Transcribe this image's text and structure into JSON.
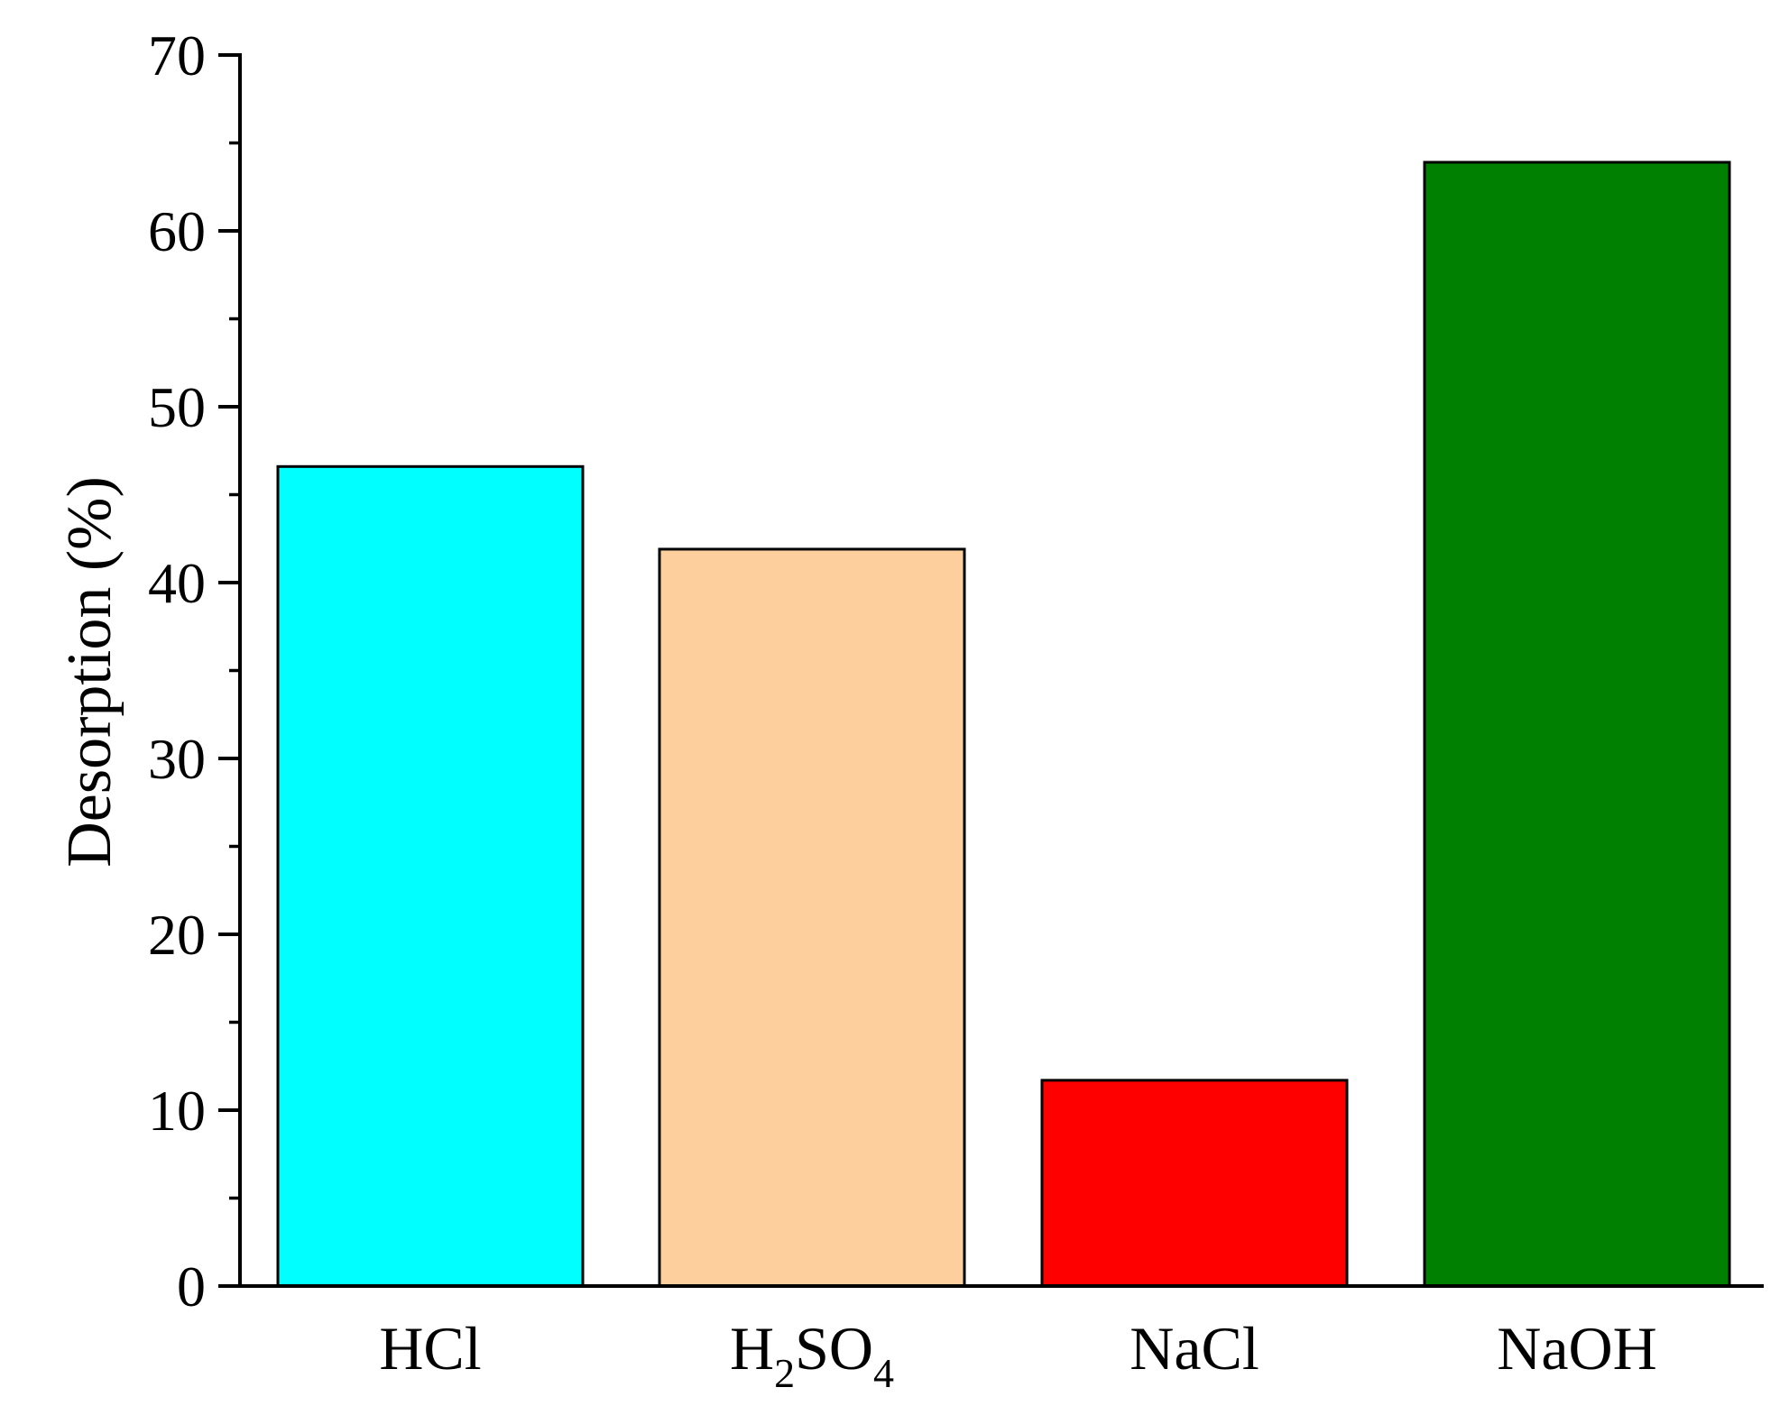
{
  "chart_data": {
    "type": "bar",
    "categories": [
      {
        "id": "hcl",
        "base": "HCl",
        "parts": [
          {
            "t": "HCl",
            "sub": false
          }
        ]
      },
      {
        "id": "h2so4",
        "base": "H2SO4",
        "parts": [
          {
            "t": "H",
            "sub": false
          },
          {
            "t": "2",
            "sub": true
          },
          {
            "t": "SO",
            "sub": false
          },
          {
            "t": "4",
            "sub": true
          }
        ]
      },
      {
        "id": "nacl",
        "base": "NaCl",
        "parts": [
          {
            "t": "NaCl",
            "sub": false
          }
        ]
      },
      {
        "id": "naoh",
        "base": "NaOH",
        "parts": [
          {
            "t": "NaOH",
            "sub": false
          }
        ]
      }
    ],
    "values": [
      46.6,
      41.9,
      11.7,
      63.9
    ],
    "colors": [
      "#00ffff",
      "#fdcf9c",
      "#ff0000",
      "#008000"
    ],
    "ylabel": "Desorption (%)",
    "xlabel": "",
    "ylim": [
      0,
      70
    ],
    "yticks": [
      0,
      10,
      20,
      30,
      40,
      50,
      60,
      70
    ],
    "yticks_minor_step": 5,
    "grid": false,
    "legend": "none"
  }
}
